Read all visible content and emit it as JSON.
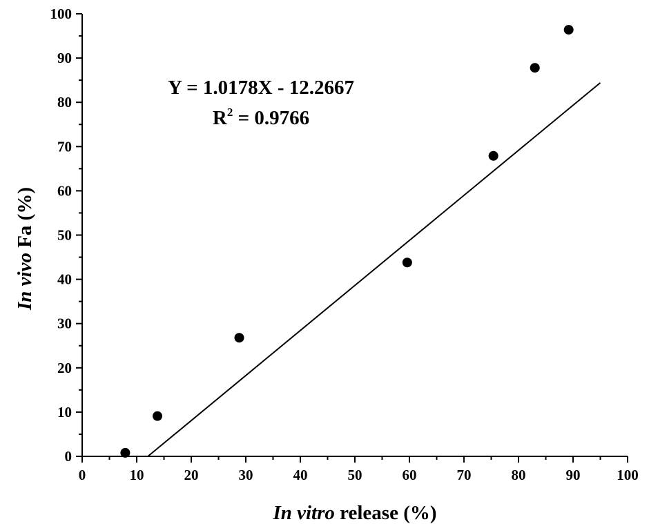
{
  "chart_data": {
    "type": "scatter",
    "x_label_italic": "In vitro",
    "x_label_rest": " release (%)",
    "y_label_italic": "In vivo",
    "y_label_rest": " Fa (%)",
    "xlim": [
      0,
      100
    ],
    "ylim": [
      0,
      100
    ],
    "x_ticks": [
      "0",
      "10",
      "20",
      "30",
      "40",
      "50",
      "60",
      "70",
      "80",
      "90",
      "100"
    ],
    "y_ticks": [
      "0",
      "10",
      "20",
      "30",
      "40",
      "50",
      "60",
      "70",
      "80",
      "90",
      "100"
    ],
    "grid": false,
    "points": [
      {
        "x": 7.9,
        "y": 0.8
      },
      {
        "x": 13.8,
        "y": 9.1
      },
      {
        "x": 28.8,
        "y": 26.8
      },
      {
        "x": 59.6,
        "y": 43.8
      },
      {
        "x": 75.4,
        "y": 67.9
      },
      {
        "x": 83.0,
        "y": 87.8
      },
      {
        "x": 89.2,
        "y": 96.4
      }
    ],
    "fit_line": {
      "slope": 1.0178,
      "intercept": -12.2667,
      "x_end": 95
    },
    "annotation": {
      "equation": "Y = 1.0178X - 12.2667",
      "r2_prefix": "R",
      "r2_sup": "2",
      "r2_value": " = 0.9766"
    }
  }
}
